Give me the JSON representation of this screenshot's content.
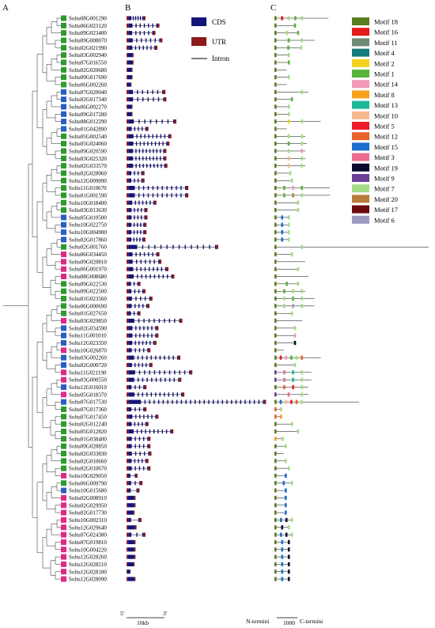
{
  "panels": {
    "a": "A",
    "b": "B",
    "c": "C"
  },
  "structure_legend": [
    {
      "key": "cds",
      "label": "CDS",
      "color": "#14147a"
    },
    {
      "key": "utr",
      "label": "UTR",
      "color": "#8b1a1a"
    },
    {
      "key": "intron",
      "label": "Intron",
      "color": "#000000"
    }
  ],
  "motif_legend": [
    {
      "label": "Motif 18",
      "color": "#5a7d1e"
    },
    {
      "label": "Motif 16",
      "color": "#e31b1b"
    },
    {
      "label": "Motif 11",
      "color": "#6d8a72"
    },
    {
      "label": "Motif 4",
      "color": "#157b7b"
    },
    {
      "label": "Motif 2",
      "color": "#f2d11c"
    },
    {
      "label": "Motif 1",
      "color": "#58b43a"
    },
    {
      "label": "Motif 14",
      "color": "#f29ab8"
    },
    {
      "label": "Motif 8",
      "color": "#f5a11c"
    },
    {
      "label": "Motif 13",
      "color": "#1bb898"
    },
    {
      "label": "Motif 10",
      "color": "#f7b98f"
    },
    {
      "label": "Motif 5",
      "color": "#ee1b2a"
    },
    {
      "label": "Motif 12",
      "color": "#e8642a"
    },
    {
      "label": "Motif 15",
      "color": "#1a6fd0"
    },
    {
      "label": "Motif 3",
      "color": "#ee6a8c"
    },
    {
      "label": "Motif 19",
      "color": "#0b0b2e"
    },
    {
      "label": "Motif 9",
      "color": "#6b3f98"
    },
    {
      "label": "Motif 7",
      "color": "#a6dc86"
    },
    {
      "label": "Motif 20",
      "color": "#b87d3a"
    },
    {
      "label": "Motif 17",
      "color": "#6a0a0a"
    },
    {
      "label": "Motif 6",
      "color": "#9b9bc2"
    }
  ],
  "colors": {
    "group_green": "#2e9a2e",
    "group_blue": "#2a5fc0",
    "group_magenta": "#e0288a",
    "cds": "#14147a",
    "utr": "#8b1a1a"
  },
  "genes": [
    {
      "name": "Soltu08G001290",
      "group": "green",
      "length": 1.9,
      "exons": 6,
      "motif_len": 0.35,
      "motifs": [
        "Motif 18",
        "Motif 16",
        "Motif 7",
        "Motif 1",
        "Motif 7"
      ]
    },
    {
      "name": "Soltu06G023120",
      "group": "green",
      "length": 3.3,
      "exons": 7,
      "motif_len": 0.14,
      "motifs": [
        "Motif 18",
        "Motif 1"
      ]
    },
    {
      "name": "Soltu09G023400",
      "group": "green",
      "length": 2.9,
      "exons": 6,
      "motif_len": 0.16,
      "motifs": [
        "Motif 18",
        "Motif 7",
        "Motif 1"
      ]
    },
    {
      "name": "Soltu09G008070",
      "group": "green",
      "length": 3.6,
      "exons": 7,
      "motif_len": 0.26,
      "motifs": [
        "Motif 18",
        "Motif 1",
        "Motif 7"
      ]
    },
    {
      "name": "Soltu02G021990",
      "group": "green",
      "length": 3.1,
      "exons": 7,
      "motif_len": 0.18,
      "motifs": [
        "Motif 18",
        "Motif 1",
        "Motif 7"
      ]
    },
    {
      "name": "Soltu03G002940",
      "group": "green",
      "length": 0.7,
      "exons": 1,
      "motif_len": 0.1,
      "motifs": [
        "Motif 18",
        "Motif 7"
      ]
    },
    {
      "name": "Soltu07G016550",
      "group": "green",
      "length": 0.7,
      "exons": 1,
      "motif_len": 0.1,
      "motifs": [
        "Motif 18",
        "Motif 1"
      ]
    },
    {
      "name": "Soltu02G020680",
      "group": "green",
      "length": 0.6,
      "exons": 1,
      "motif_len": 0.08,
      "motifs": [
        "Motif 18"
      ]
    },
    {
      "name": "Soltu09G017690",
      "group": "green",
      "length": 0.6,
      "exons": 1,
      "motif_len": 0.1,
      "motifs": [
        "Motif 18",
        "Motif 7"
      ]
    },
    {
      "name": "Soltu06G002260",
      "group": "green",
      "length": 0.5,
      "exons": 1,
      "motif_len": 0.08,
      "motifs": [
        "Motif 18"
      ]
    },
    {
      "name": "Soltu07G020040",
      "group": "blue",
      "length": 3.9,
      "exons": 7,
      "motif_len": 0.22,
      "motifs": [
        "Motif 18",
        "Motif 7"
      ]
    },
    {
      "name": "Soltu02G017340",
      "group": "blue",
      "length": 4.0,
      "exons": 7,
      "motif_len": 0.12,
      "motifs": [
        "Motif 18",
        "Motif 1"
      ]
    },
    {
      "name": "Soltu06G002270",
      "group": "blue",
      "length": 0.6,
      "exons": 1,
      "motif_len": 0.1,
      "motifs": [
        "Motif 18",
        "Motif 7"
      ]
    },
    {
      "name": "Soltu09G017280",
      "group": "blue",
      "length": 0.6,
      "exons": 1,
      "motif_len": 0.1,
      "motifs": [
        "Motif 18",
        "Motif 7"
      ]
    },
    {
      "name": "Soltu08G012290",
      "group": "blue",
      "length": 5.0,
      "exons": 8,
      "motif_len": 0.3,
      "motifs": [
        "Motif 18",
        "Motif 2",
        "Motif 7"
      ]
    },
    {
      "name": "Soltu01G042890",
      "group": "blue",
      "length": 2.2,
      "exons": 5,
      "motif_len": 0.08,
      "motifs": [
        "Motif 18"
      ]
    },
    {
      "name": "Soltu05G002540",
      "group": "green",
      "length": 4.5,
      "exons": 10,
      "motif_len": 0.2,
      "motifs": [
        "Motif 18",
        "Motif 7",
        "Motif 7"
      ]
    },
    {
      "name": "Soltu05G024060",
      "group": "green",
      "length": 4.3,
      "exons": 10,
      "motif_len": 0.21,
      "motifs": [
        "Motif 18",
        "Motif 1",
        "Motif 7"
      ]
    },
    {
      "name": "Soltu09G020590",
      "group": "green",
      "length": 4.0,
      "exons": 10,
      "motif_len": 0.2,
      "motifs": [
        "Motif 18",
        "Motif 7",
        "Motif 14"
      ]
    },
    {
      "name": "Soltu03G025320",
      "group": "green",
      "length": 4.0,
      "exons": 10,
      "motif_len": 0.2,
      "motifs": [
        "Motif 18",
        "Motif 10",
        "Motif 7"
      ]
    },
    {
      "name": "Soltu02G033570",
      "group": "green",
      "length": 4.1,
      "exons": 10,
      "motif_len": 0.2,
      "motifs": [
        "Motif 18",
        "Motif 10",
        "Motif 7"
      ]
    },
    {
      "name": "Soltu02G028060",
      "group": "green",
      "length": 1.8,
      "exons": 4,
      "motif_len": 0.11,
      "motifs": [
        "Motif 18",
        "Motif 7"
      ]
    },
    {
      "name": "Soltu12G009090",
      "group": "green",
      "length": 1.8,
      "exons": 4,
      "motif_len": 0.12,
      "motifs": [
        "Motif 18",
        "Motif 7"
      ]
    },
    {
      "name": "Soltu11G010670",
      "group": "green",
      "length": 6.2,
      "exons": 12,
      "motif_len": 0.36,
      "motifs": [
        "Motif 18",
        "Motif 1",
        "Motif 14",
        "Motif 1"
      ]
    },
    {
      "name": "Soltu01G001590",
      "group": "green",
      "length": 6.2,
      "exons": 12,
      "motif_len": 0.36,
      "motifs": [
        "Motif 18",
        "Motif 1",
        "Motif 20",
        "Motif 7"
      ]
    },
    {
      "name": "Soltu10G018400",
      "group": "green",
      "length": 3.0,
      "exons": 7,
      "motif_len": 0.16,
      "motifs": [
        "Motif 18",
        "Motif 7"
      ]
    },
    {
      "name": "Soltu03G013630",
      "group": "green",
      "length": 2.1,
      "exons": 5,
      "motif_len": 0.16,
      "motifs": [
        "Motif 18",
        "Motif 7"
      ]
    },
    {
      "name": "Soltu05G010500",
      "group": "blue",
      "length": 2.1,
      "exons": 5,
      "motif_len": 0.1,
      "motifs": [
        "Motif 18",
        "Motif 15",
        "Motif 7"
      ]
    },
    {
      "name": "Soltu10G022750",
      "group": "blue",
      "length": 2.0,
      "exons": 5,
      "motif_len": 0.1,
      "motifs": [
        "Motif 18",
        "Motif 15",
        "Motif 7"
      ]
    },
    {
      "name": "Soltu10G004900",
      "group": "blue",
      "length": 2.0,
      "exons": 5,
      "motif_len": 0.1,
      "motifs": [
        "Motif 18",
        "Motif 15",
        "Motif 7"
      ]
    },
    {
      "name": "Soltu02G017860",
      "group": "blue",
      "length": 1.9,
      "exons": 5,
      "motif_len": 0.1,
      "motifs": [
        "Motif 18",
        "Motif 15",
        "Motif 7"
      ]
    },
    {
      "name": "Soltu02G001760",
      "group": "green",
      "length": 9.2,
      "exons": 14,
      "motif_len": 1.0,
      "motifs": [
        "Motif 18",
        "Motif 7"
      ]
    },
    {
      "name": "Soltu06G034450",
      "group": "magenta",
      "length": 3.3,
      "exons": 7,
      "motif_len": 0.12,
      "motifs": [
        "Motif 18",
        "Motif 7"
      ]
    },
    {
      "name": "Soltu09G020810",
      "group": "magenta",
      "length": 3.5,
      "exons": 7,
      "motif_len": 0.2,
      "motifs": [
        "Motif 18"
      ]
    },
    {
      "name": "Soltu06G001970",
      "group": "magenta",
      "length": 4.2,
      "exons": 9,
      "motif_len": 0.16,
      "motifs": [
        "Motif 18",
        "Motif 7"
      ]
    },
    {
      "name": "Soltu08G008680",
      "group": "magenta",
      "length": 4.8,
      "exons": 10,
      "motif_len": 0.22,
      "motifs": [
        "Motif 18"
      ]
    },
    {
      "name": "Soltu09G022530",
      "group": "green",
      "length": 1.4,
      "exons": 3,
      "motif_len": 0.16,
      "motifs": [
        "Motif 18",
        "Motif 1",
        "Motif 7"
      ]
    },
    {
      "name": "Soltu09G022500",
      "group": "green",
      "length": 1.9,
      "exons": 4,
      "motif_len": 0.2,
      "motifs": [
        "Motif 18",
        "Motif 1",
        "Motif 7",
        "Motif 7"
      ]
    },
    {
      "name": "Soltu01G023560",
      "group": "green",
      "length": 2.6,
      "exons": 5,
      "motif_len": 0.26,
      "motifs": [
        "Motif 18",
        "Motif 7",
        "Motif 1",
        "Motif 7"
      ]
    },
    {
      "name": "Soltu06G000690",
      "group": "green",
      "length": 2.3,
      "exons": 5,
      "motif_len": 0.26,
      "motifs": [
        "Motif 18",
        "Motif 7",
        "Motif 6",
        "Motif 7"
      ]
    },
    {
      "name": "Soltu01G027650",
      "group": "green",
      "length": 1.4,
      "exons": 3,
      "motif_len": 0.12,
      "motifs": [
        "Motif 18",
        "Motif 7"
      ]
    },
    {
      "name": "Soltu03G029850",
      "group": "magenta",
      "length": 5.6,
      "exons": 10,
      "motif_len": 0.18,
      "motifs": [
        "Motif 18"
      ]
    },
    {
      "name": "Soltu02G034590",
      "group": "blue",
      "length": 3.2,
      "exons": 7,
      "motif_len": 0.14,
      "motifs": [
        "Motif 18",
        "Motif 7"
      ]
    },
    {
      "name": "Soltu11G001010",
      "group": "blue",
      "length": 3.2,
      "exons": 7,
      "motif_len": 0.14,
      "motifs": [
        "Motif 18",
        "Motif 14"
      ]
    },
    {
      "name": "Soltu12G023350",
      "group": "blue",
      "length": 3.0,
      "exons": 7,
      "motif_len": 0.14,
      "motifs": [
        "Motif 18",
        "Motif 19"
      ]
    },
    {
      "name": "Soltu10G026870",
      "group": "magenta",
      "length": 2.4,
      "exons": 5,
      "motif_len": 0.06,
      "motifs": [
        "Motif 18"
      ]
    },
    {
      "name": "Soltu03G002260",
      "group": "blue",
      "length": 5.4,
      "exons": 11,
      "motif_len": 0.3,
      "motifs": [
        "Motif 18",
        "Motif 16",
        "Motif 14",
        "Motif 1",
        "Motif 7",
        "Motif 12"
      ]
    },
    {
      "name": "Soltu02G000720",
      "group": "blue",
      "length": 2.6,
      "exons": 6,
      "motif_len": 0.14,
      "motifs": [
        "Motif 18",
        "Motif 7"
      ]
    },
    {
      "name": "Soltu11G021190",
      "group": "magenta",
      "length": 6.6,
      "exons": 12,
      "motif_len": 0.24,
      "motifs": [
        "Motif 9",
        "Motif 3",
        "Motif 13",
        "Motif 7"
      ]
    },
    {
      "name": "Soltu03G000550",
      "group": "magenta",
      "length": 5.5,
      "exons": 11,
      "motif_len": 0.24,
      "motifs": [
        "Motif 9",
        "Motif 3",
        "Motif 13",
        "Motif 7"
      ]
    },
    {
      "name": "Soltu12G016010",
      "group": "blue",
      "length": 2.0,
      "exons": 4,
      "motif_len": 0.22,
      "motifs": [
        "Motif 18",
        "Motif 12",
        "Motif 5",
        "Motif 7"
      ]
    },
    {
      "name": "Soltu05G018370",
      "group": "magenta",
      "length": 5.8,
      "exons": 12,
      "motif_len": 0.22,
      "motifs": [
        "Motif 9",
        "Motif 3",
        "Motif 7"
      ]
    },
    {
      "name": "Soltu07G017530",
      "group": "blue",
      "length": 14.0,
      "exons": 28,
      "motif_len": 0.55,
      "motifs": [
        "Motif 18",
        "Motif 15",
        "Motif 10",
        "Motif 5",
        "Motif 12",
        "Motif 7"
      ]
    },
    {
      "name": "Soltu07G017360",
      "group": "green",
      "length": 2.0,
      "exons": 4,
      "motif_len": 0.05,
      "motifs": [
        "Motif 12",
        "Motif 7"
      ]
    },
    {
      "name": "Soltu07G017450",
      "group": "green",
      "length": 3.2,
      "exons": 7,
      "motif_len": 0.05,
      "motifs": [
        "Motif 12",
        "Motif 8"
      ]
    },
    {
      "name": "Soltu02G012240",
      "group": "green",
      "length": 2.2,
      "exons": 5,
      "motif_len": 0.12,
      "motifs": [
        "Motif 18",
        "Motif 7"
      ]
    },
    {
      "name": "Soltu05G012820",
      "group": "green",
      "length": 4.7,
      "exons": 10,
      "motif_len": 0.16,
      "motifs": [
        "Motif 18",
        "Motif 7"
      ]
    },
    {
      "name": "Soltu01G038400",
      "group": "green",
      "length": 2.4,
      "exons": 5,
      "motif_len": 0.06,
      "motifs": [
        "Motif 8",
        "Motif 7"
      ]
    },
    {
      "name": "Soltu09G028850",
      "group": "green",
      "length": 2.4,
      "exons": 5,
      "motif_len": 0.08,
      "motifs": [
        "Motif 18",
        "Motif 7"
      ]
    },
    {
      "name": "Soltu02G033830",
      "group": "green",
      "length": 2.5,
      "exons": 5,
      "motif_len": 0.06,
      "motifs": [
        "Motif 18"
      ]
    },
    {
      "name": "Soltu02G010660",
      "group": "green",
      "length": 2.2,
      "exons": 5,
      "motif_len": 0.08,
      "motifs": [
        "Motif 18",
        "Motif 7"
      ]
    },
    {
      "name": "Soltu02G010670",
      "group": "green",
      "length": 2.4,
      "exons": 5,
      "motif_len": 0.1,
      "motifs": [
        "Motif 18",
        "Motif 7"
      ]
    },
    {
      "name": "Soltu10G029050",
      "group": "magenta",
      "length": 1.1,
      "exons": 2,
      "motif_len": 0.08,
      "motifs": [
        "Motif 18",
        "Motif 15"
      ]
    },
    {
      "name": "Soltu06G009790",
      "group": "green",
      "length": 1.6,
      "exons": 3,
      "motif_len": 0.12,
      "motifs": [
        "Motif 18",
        "Motif 15",
        "Motif 7"
      ]
    },
    {
      "name": "Soltu10G015680",
      "group": "blue",
      "length": 1.3,
      "exons": 2,
      "motif_len": 0.08,
      "motifs": [
        "Motif 18",
        "Motif 15"
      ]
    },
    {
      "name": "Soltu02G008910",
      "group": "magenta",
      "length": 0.9,
      "exons": 1,
      "motif_len": 0.08,
      "motifs": [
        "Motif 18",
        "Motif 15"
      ]
    },
    {
      "name": "Soltu02G029950",
      "group": "magenta",
      "length": 0.9,
      "exons": 1,
      "motif_len": 0.08,
      "motifs": [
        "Motif 18",
        "Motif 15"
      ]
    },
    {
      "name": "Soltu02G017730",
      "group": "magenta",
      "length": 0.8,
      "exons": 1,
      "motif_len": 0.08,
      "motifs": [
        "Motif 18",
        "Motif 15"
      ]
    },
    {
      "name": "Soltu10G002310",
      "group": "magenta",
      "length": 1.5,
      "exons": 2,
      "motif_len": 0.12,
      "motifs": [
        "Motif 18",
        "Motif 15",
        "Motif 19",
        "Motif 7"
      ]
    },
    {
      "name": "Soltu12G029640",
      "group": "magenta",
      "length": 1.0,
      "exons": 1,
      "motif_len": 0.1,
      "motifs": [
        "Motif 18",
        "Motif 19",
        "Motif 7"
      ]
    },
    {
      "name": "Soltu07G024380",
      "group": "magenta",
      "length": 1.9,
      "exons": 3,
      "motif_len": 0.12,
      "motifs": [
        "Motif 18",
        "Motif 15",
        "Motif 19",
        "Motif 7"
      ]
    },
    {
      "name": "Soltu07G019810",
      "group": "magenta",
      "length": 0.9,
      "exons": 1,
      "motif_len": 0.1,
      "motifs": [
        "Motif 18",
        "Motif 15",
        "Motif 19"
      ]
    },
    {
      "name": "Soltu10G004220",
      "group": "magenta",
      "length": 0.9,
      "exons": 1,
      "motif_len": 0.1,
      "motifs": [
        "Motif 18",
        "Motif 15",
        "Motif 19"
      ]
    },
    {
      "name": "Soltu12G028260",
      "group": "magenta",
      "length": 0.9,
      "exons": 1,
      "motif_len": 0.1,
      "motifs": [
        "Motif 18",
        "Motif 15",
        "Motif 19"
      ]
    },
    {
      "name": "Soltu12G028210",
      "group": "magenta",
      "length": 0.8,
      "exons": 1,
      "motif_len": 0.1,
      "motifs": [
        "Motif 18",
        "Motif 15",
        "Motif 19"
      ]
    },
    {
      "name": "Soltu12G028180",
      "group": "magenta",
      "length": 0.4,
      "exons": 1,
      "motif_len": 0.1,
      "motifs": [
        "Motif 18",
        "Motif 15",
        "Motif 19"
      ]
    },
    {
      "name": "Soltu12G028090",
      "group": "magenta",
      "length": 0.9,
      "exons": 1,
      "motif_len": 0.1,
      "motifs": [
        "Motif 18",
        "Motif 15",
        "Motif 19"
      ]
    }
  ],
  "scale_b": {
    "left": "5'",
    "right": "3'",
    "label": "10kb"
  },
  "scale_c": {
    "left": "N-termini",
    "label": "1000",
    "right": "C-termini"
  }
}
